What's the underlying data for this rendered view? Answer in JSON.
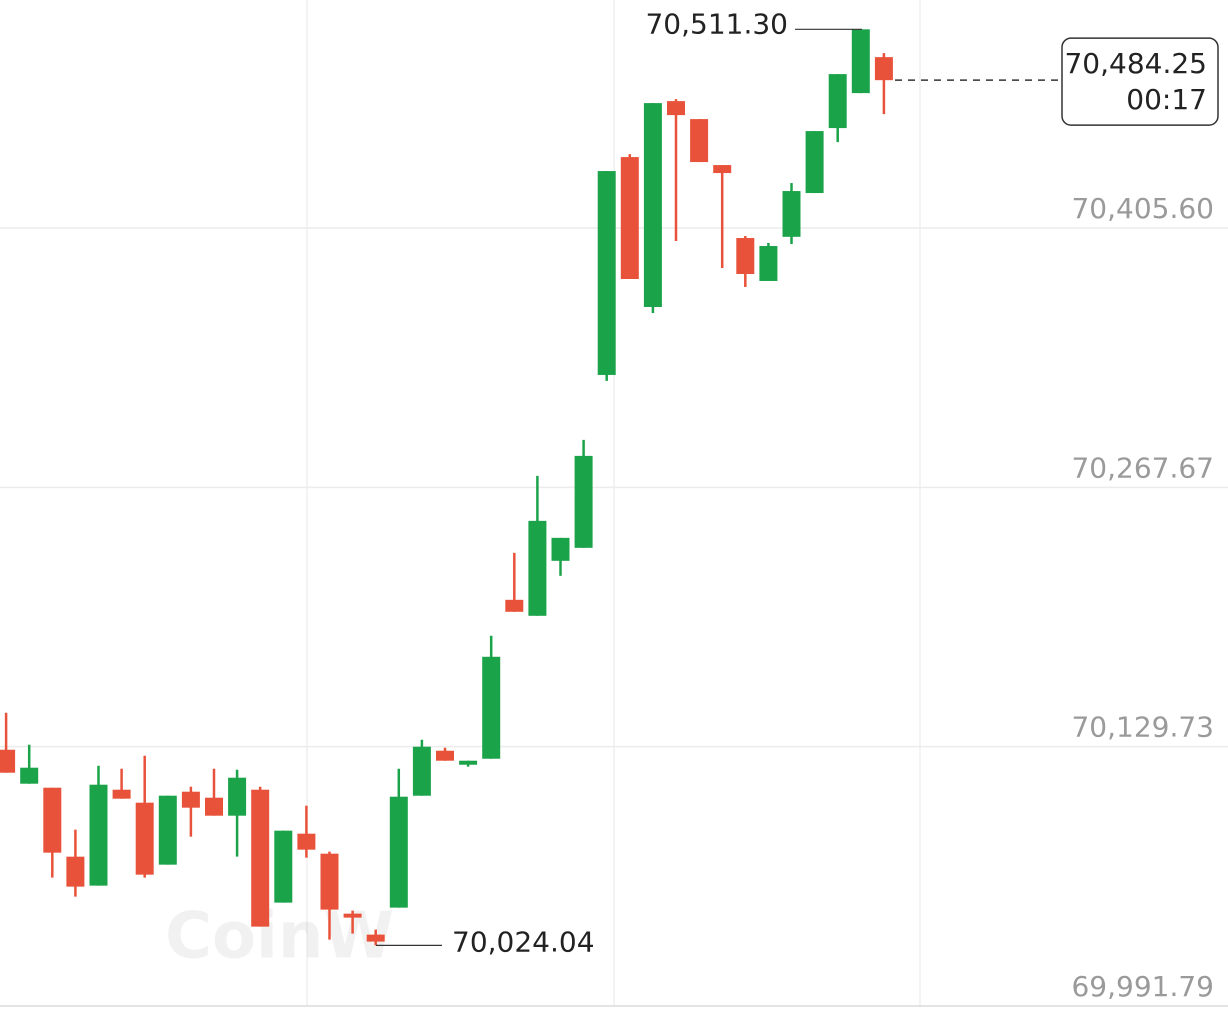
{
  "chart_data": {
    "type": "candlestick",
    "watermark": "CoinW",
    "up_color": "#1ba34a",
    "down_color": "#e9523a",
    "open": [
      70128.1,
      70110.03,
      70107.9,
      70071.22,
      70055.81,
      70106.84,
      70099.93,
      70066.97,
      70105.78,
      70102.59,
      70093.02,
      70106.84,
      70046.77,
      70083.45,
      70072.82,
      70040.92,
      70029.76,
      70044.11,
      70103.65,
      70127.57,
      70120.13,
      70123.32,
      70207.84,
      70199.34,
      70228.58,
      70235.49,
      70327.45,
      70443.34,
      70363.6,
      70473.11,
      70463.54,
      70439.09,
      70400.28,
      70377.43,
      70400.92,
      70424.21,
      70458.76,
      70477.37,
      70496.5
    ],
    "high": [
      70147.77,
      70130.76,
      70107.9,
      70085.58,
      70119.6,
      70118.0,
      70124.92,
      70103.65,
      70108.44,
      70118.0,
      70117.47,
      70108.44,
      70085.05,
      70098.34,
      70073.88,
      70042.52,
      70032.42,
      70118.0,
      70133.42,
      70129.17,
      70122.26,
      70188.71,
      70232.83,
      70273.76,
      70240.8,
      70292.9,
      70435.9,
      70444.94,
      70472.05,
      70474.18,
      70463.54,
      70439.09,
      70401.35,
      70397.63,
      70429.52,
      70457.17,
      70487.47,
      70511.3,
      70498.63
    ],
    "low": [
      70115.88,
      70110.03,
      70060.06,
      70049.96,
      70055.81,
      70102.06,
      70060.06,
      70066.97,
      70081.86,
      70093.02,
      70071.22,
      70034.01,
      70046.77,
      70070.69,
      70027.1,
      70030.29,
      70024.04,
      70044.11,
      70103.65,
      70122.26,
      70119.07,
      70123.32,
      70201.47,
      70199.34,
      70220.6,
      70235.49,
      70324.27,
      70378.49,
      70360.41,
      70398.69,
      70440.69,
      70384.34,
      70374.24,
      70377.43,
      70397.09,
      70424.21,
      70451.32,
      70477.37,
      70466.2
    ],
    "close": [
      70115.88,
      70118.54,
      70073.35,
      70055.28,
      70109.5,
      70102.06,
      70061.65,
      70103.65,
      70097.27,
      70093.02,
      70113.22,
      70034.01,
      70085.05,
      70074.94,
      70043.05,
      70038.8,
      70026.04,
      70103.12,
      70129.7,
      70122.26,
      70122.26,
      70177.54,
      70201.47,
      70249.84,
      70240.8,
      70284.4,
      70435.9,
      70378.49,
      70472.05,
      70465.67,
      70440.69,
      70434.84,
      70381.15,
      70396.03,
      70425.27,
      70457.17,
      70487.47,
      70511.3,
      70484.25
    ],
    "ylim": [
      69991.79,
      70526.89
    ],
    "yticks": [
      {
        "value": 69991.79,
        "label": "69,991.79"
      },
      {
        "value": 70129.73,
        "label": "70,129.73"
      },
      {
        "value": 70267.67,
        "label": "70,267.67"
      },
      {
        "value": 70405.6,
        "label": "70,405.60"
      }
    ],
    "grid": true,
    "annotations": [
      {
        "value": 70511.3,
        "label": "70,511.30"
      },
      {
        "value": 70024.04,
        "label": "70,024.04"
      }
    ],
    "current_price": {
      "value": 70484.25,
      "label": "70,484.25",
      "countdown": "00:17"
    }
  }
}
